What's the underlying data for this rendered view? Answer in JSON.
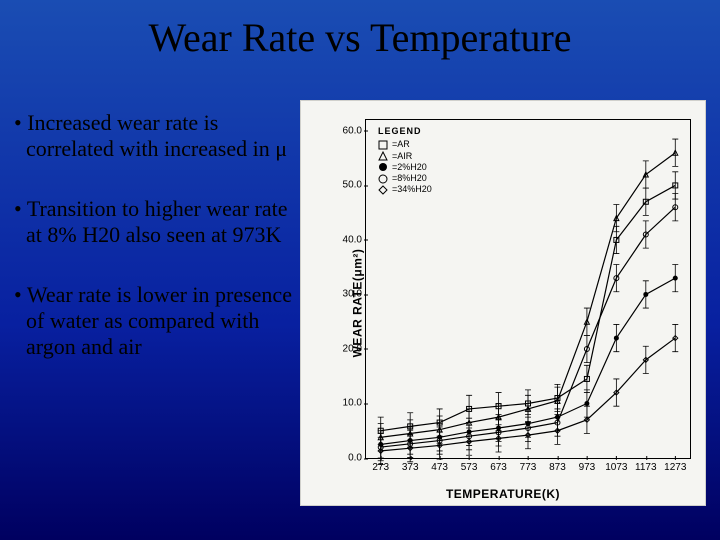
{
  "title": "Wear Rate vs Temperature",
  "bullets": [
    "Increased wear rate is correlated with increased in μ",
    "Transition to higher wear rate at 8% H20 also seen at 973K",
    "Wear rate is lower in presence of water as compared with argon and air"
  ],
  "chart": {
    "type": "line-scatter",
    "background_color": "#f5f5f2",
    "xlabel": "TEMPERATURE(K)",
    "ylabel": "WEAR RATE(μm²)",
    "xlim": [
      223,
      1323
    ],
    "ylim": [
      0,
      62
    ],
    "xticks": [
      273,
      373,
      473,
      573,
      673,
      773,
      873,
      973,
      1073,
      1173,
      1273
    ],
    "yticks": [
      0,
      10,
      20,
      30,
      40,
      50,
      60
    ],
    "ytick_labels": [
      "0.0",
      "10.0",
      "20.0",
      "30.0",
      "40.0",
      "50.0",
      "60.0"
    ],
    "axis_color": "#000000",
    "tick_fontsize": 10,
    "label_fontsize": 12,
    "line_width": 1.2,
    "marker_size": 5,
    "error_bar_half": 2.5,
    "legend": {
      "title": "LEGEND",
      "position": "top-left",
      "items": [
        {
          "symbol": "square-open",
          "label": "=AR"
        },
        {
          "symbol": "triangle-open",
          "label": "=AIR"
        },
        {
          "symbol": "circle-filled",
          "label": "=2%H20"
        },
        {
          "symbol": "circle-open",
          "label": "=8%H20"
        },
        {
          "symbol": "diamond-open",
          "label": "=34%H20"
        }
      ]
    },
    "series": [
      {
        "name": "AR",
        "marker": "square-open",
        "color": "#000000",
        "points": [
          {
            "x": 273,
            "y": 5.0
          },
          {
            "x": 373,
            "y": 5.8
          },
          {
            "x": 473,
            "y": 6.5
          },
          {
            "x": 573,
            "y": 9.0
          },
          {
            "x": 673,
            "y": 9.5
          },
          {
            "x": 773,
            "y": 10.0
          },
          {
            "x": 873,
            "y": 11.0
          },
          {
            "x": 973,
            "y": 14.5
          },
          {
            "x": 1073,
            "y": 40.0
          },
          {
            "x": 1173,
            "y": 47.0
          },
          {
            "x": 1273,
            "y": 50.0
          }
        ]
      },
      {
        "name": "AIR",
        "marker": "triangle-open",
        "color": "#000000",
        "points": [
          {
            "x": 273,
            "y": 3.8
          },
          {
            "x": 373,
            "y": 4.5
          },
          {
            "x": 473,
            "y": 5.2
          },
          {
            "x": 573,
            "y": 6.5
          },
          {
            "x": 673,
            "y": 7.5
          },
          {
            "x": 773,
            "y": 9.0
          },
          {
            "x": 873,
            "y": 10.5
          },
          {
            "x": 973,
            "y": 25.0
          },
          {
            "x": 1073,
            "y": 44.0
          },
          {
            "x": 1173,
            "y": 52.0
          },
          {
            "x": 1273,
            "y": 56.0
          }
        ]
      },
      {
        "name": "2%H20",
        "marker": "circle-filled",
        "color": "#000000",
        "points": [
          {
            "x": 273,
            "y": 2.5
          },
          {
            "x": 373,
            "y": 3.2
          },
          {
            "x": 473,
            "y": 3.8
          },
          {
            "x": 573,
            "y": 4.8
          },
          {
            "x": 673,
            "y": 5.5
          },
          {
            "x": 773,
            "y": 6.3
          },
          {
            "x": 873,
            "y": 7.5
          },
          {
            "x": 973,
            "y": 10.0
          },
          {
            "x": 1073,
            "y": 22.0
          },
          {
            "x": 1173,
            "y": 30.0
          },
          {
            "x": 1273,
            "y": 33.0
          }
        ]
      },
      {
        "name": "8%H20",
        "marker": "circle-open",
        "color": "#000000",
        "points": [
          {
            "x": 273,
            "y": 2.0
          },
          {
            "x": 373,
            "y": 2.6
          },
          {
            "x": 473,
            "y": 3.2
          },
          {
            "x": 573,
            "y": 4.0
          },
          {
            "x": 673,
            "y": 4.7
          },
          {
            "x": 773,
            "y": 5.5
          },
          {
            "x": 873,
            "y": 6.5
          },
          {
            "x": 973,
            "y": 20.0
          },
          {
            "x": 1073,
            "y": 33.0
          },
          {
            "x": 1173,
            "y": 41.0
          },
          {
            "x": 1273,
            "y": 46.0
          }
        ]
      },
      {
        "name": "34%H20",
        "marker": "diamond-open",
        "color": "#000000",
        "points": [
          {
            "x": 273,
            "y": 1.3
          },
          {
            "x": 373,
            "y": 1.8
          },
          {
            "x": 473,
            "y": 2.3
          },
          {
            "x": 573,
            "y": 3.0
          },
          {
            "x": 673,
            "y": 3.6
          },
          {
            "x": 773,
            "y": 4.2
          },
          {
            "x": 873,
            "y": 5.0
          },
          {
            "x": 973,
            "y": 7.0
          },
          {
            "x": 1073,
            "y": 12.0
          },
          {
            "x": 1173,
            "y": 18.0
          },
          {
            "x": 1273,
            "y": 22.0
          }
        ]
      }
    ]
  }
}
